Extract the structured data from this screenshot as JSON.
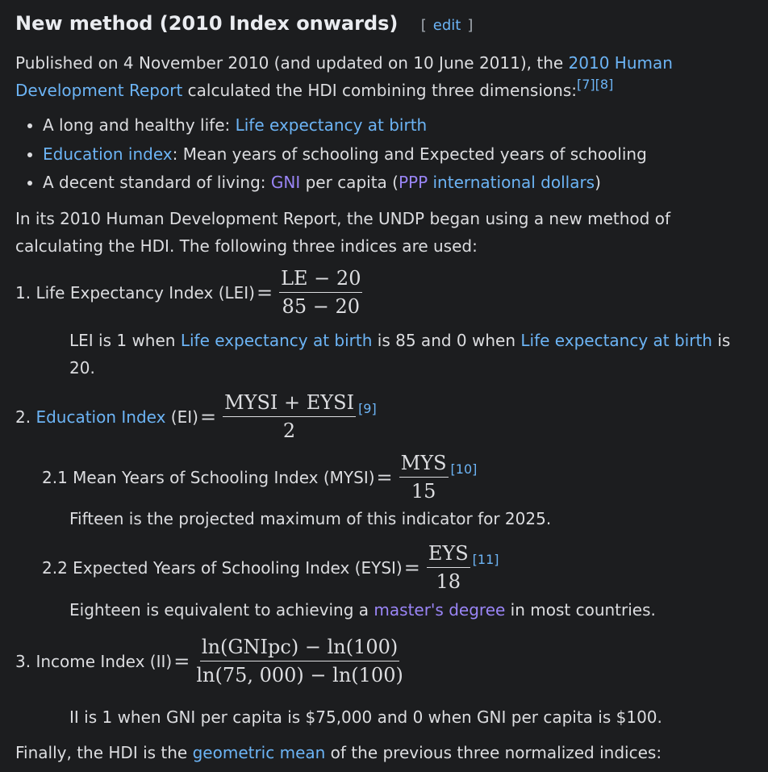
{
  "heading": {
    "title": "New method (2010 Index onwards)",
    "edit": [
      "[",
      "edit",
      "]"
    ],
    "edit_color": "#6cb4f5"
  },
  "intro": [
    "Published on 4 November 2010 (and updated on 10 June 2011), the ",
    {
      "text": "2010 Human Development Report",
      "color": "#6cb4f5"
    },
    " calculated the HDI combining three dimensions:",
    {
      "text": "[7]",
      "color": "#6cb4f5",
      "sup": true
    },
    {
      "text": "[8]",
      "color": "#6cb4f5",
      "sup": true
    }
  ],
  "bullets": [
    [
      "A long and healthy life: ",
      {
        "text": "Life expectancy at birth",
        "color": "#6cb4f5"
      }
    ],
    [
      {
        "text": "Education index",
        "color": "#6cb4f5"
      },
      ": Mean years of schooling and Expected years of schooling"
    ],
    [
      "A decent standard of living: ",
      {
        "text": "GNI",
        "color": "#9a85f6"
      },
      " per capita (",
      {
        "text": "PPP",
        "color": "#9a85f6"
      },
      " ",
      {
        "text": "international dollars",
        "color": "#6cb4f5"
      },
      ")"
    ]
  ],
  "methods": [
    "In its 2010 Human Development Report, the UNDP began using a new method of calculating the HDI. The following three indices are used:"
  ],
  "formulas": [
    {
      "label": [
        "1. Life Expectancy Index (LEI) "
      ],
      "relation": "=",
      "numerator": "LE − 20",
      "denominator": "85 − 20"
    },
    {
      "label": [
        "2. ",
        {
          "text": "Education Index",
          "color": "#6cb4f5"
        },
        " (EI) "
      ],
      "relation": "=",
      "numerator": "MYSI + EYSI",
      "denominator": "2",
      "ref": {
        "text": "[9]",
        "color": "#6cb4f5"
      }
    },
    {
      "label": [
        "2.1 Mean Years of Schooling Index (MYSI) "
      ],
      "relation": "=",
      "numerator": "MYS",
      "denominator": "15",
      "ref": {
        "text": "[10]",
        "color": "#6cb4f5"
      }
    },
    {
      "label": [
        "2.2 Expected Years of Schooling Index (EYSI) "
      ],
      "relation": "=",
      "numerator": "EYS",
      "denominator": "18",
      "ref": {
        "text": "[11]",
        "color": "#6cb4f5"
      }
    },
    {
      "label": [
        "3. Income Index (II) "
      ],
      "relation": "=",
      "numerator": "ln(GNIpc) − ln(100)",
      "denominator": "ln(75, 000) − ln(100)"
    }
  ],
  "notes": [
    [
      "LEI is 1 when ",
      {
        "text": "Life expectancy at birth",
        "color": "#6cb4f5"
      },
      " is 85 and 0 when ",
      {
        "text": "Life expectancy at birth",
        "color": "#6cb4f5"
      },
      " is 20."
    ],
    [
      "Fifteen is the projected maximum of this indicator for 2025."
    ],
    [
      "Eighteen is equivalent to achieving a ",
      {
        "text": "master's degree",
        "color": "#9a85f6"
      },
      " in most countries."
    ],
    [
      "II is 1 when GNI per capita is $75,000 and 0 when GNI per capita is $100."
    ]
  ],
  "final": [
    "Finally, the HDI is the ",
    {
      "text": "geometric mean",
      "color": "#6cb4f5"
    },
    " of the previous three normalized indices:"
  ]
}
